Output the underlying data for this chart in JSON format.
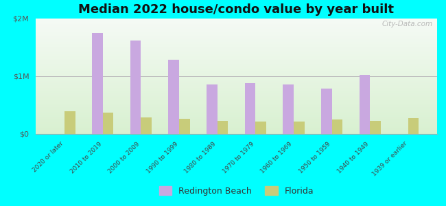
{
  "title": "Median 2022 house/condo value by year built",
  "categories": [
    "2020 or later",
    "2010 to 2019",
    "2000 to 2009",
    "1990 to 1999",
    "1980 to 1989",
    "1970 to 1979",
    "1960 to 1969",
    "1950 to 1959",
    "1940 to 1949",
    "1939 or earlier"
  ],
  "redington_beach": [
    0,
    1750000,
    1620000,
    1280000,
    860000,
    880000,
    860000,
    780000,
    1020000,
    0
  ],
  "florida": [
    390000,
    370000,
    290000,
    265000,
    230000,
    215000,
    220000,
    250000,
    225000,
    275000
  ],
  "redington_color": "#c9a8e0",
  "florida_color": "#c8cc7a",
  "background_top": "#f5faf5",
  "background_bottom": "#d8f0d0",
  "outer_background": "#00ffff",
  "ylim": [
    0,
    2000000
  ],
  "yticks": [
    0,
    1000000,
    2000000
  ],
  "ytick_labels": [
    "$0",
    "$1M",
    "$2M"
  ],
  "bar_width": 0.28,
  "legend_labels": [
    "Redington Beach",
    "Florida"
  ],
  "title_fontsize": 13,
  "watermark": "City-Data.com"
}
